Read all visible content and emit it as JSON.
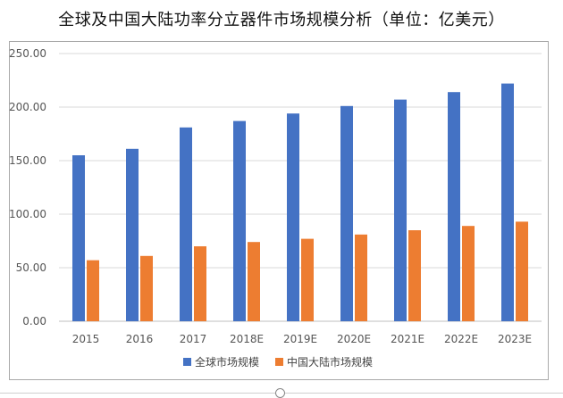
{
  "chart_data": {
    "type": "bar",
    "title": "全球及中国大陆功率分立器件市场规模分析（单位：亿美元）",
    "categories": [
      "2015",
      "2016",
      "2017",
      "2018E",
      "2019E",
      "2020E",
      "2021E",
      "2022E",
      "2023E"
    ],
    "series": [
      {
        "name": "全球市场规模",
        "color": "#4472C4",
        "values": [
          155,
          161,
          181,
          187,
          194,
          201,
          207,
          214,
          222
        ]
      },
      {
        "name": "中国大陆市场规模",
        "color": "#ED7D31",
        "values": [
          57,
          61,
          70,
          74,
          77,
          81,
          85,
          89,
          93
        ]
      }
    ],
    "ylim": [
      0,
      250
    ],
    "yticks": [
      "0.00",
      "50.00",
      "100.00",
      "150.00",
      "200.00",
      "250.00"
    ],
    "grid": true,
    "legend_position": "bottom"
  }
}
